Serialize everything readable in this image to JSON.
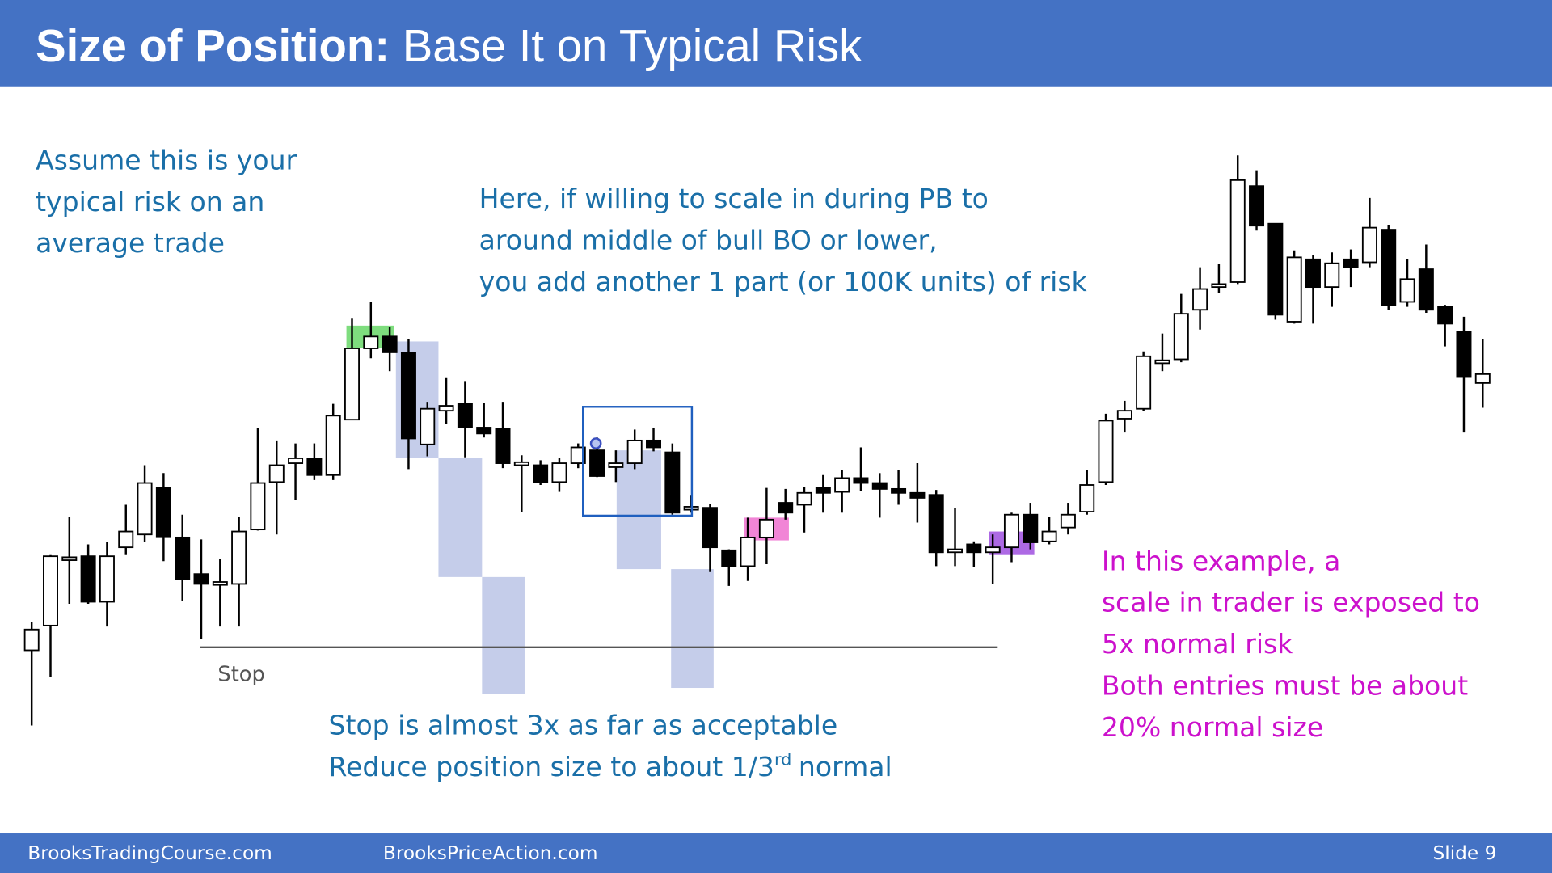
{
  "header": {
    "title_bold": "Size of Position:",
    "title_rest": "Base It on Typical Risk"
  },
  "notes": {
    "typical_risk": [
      "Assume this is your",
      "typical risk on an",
      "average trade"
    ],
    "scale_in": [
      "Here, if willing to scale in during PB to",
      "around middle of bull BO or lower,",
      "you add another 1 part (or 100K units) of risk"
    ],
    "stop": [
      "Stop is almost 3x as far as acceptable",
      "Reduce position size to about 1/3",
      "rd",
      "normal"
    ],
    "example": [
      "In this example, a",
      "scale in trader is exposed to",
      "5x normal risk",
      "Both entries must be about",
      "20% normal size"
    ],
    "stop_label": "Stop"
  },
  "footer": {
    "left": "BrooksTradingCourse.com",
    "middle": "BrooksPriceAction.com",
    "slide": "Slide 9"
  },
  "chart_data": {
    "type": "candlestick",
    "up_color": "#ffffff",
    "down_color": "#000000",
    "ylim": [
      0,
      620
    ],
    "open": [
      103,
      128,
      194,
      198,
      152,
      207,
      220,
      267,
      217,
      180,
      169,
      170,
      225,
      273,
      292,
      297,
      280,
      336,
      408,
      420,
      404,
      311,
      345,
      352,
      328,
      327,
      290,
      290,
      273,
      292,
      305,
      288,
      292,
      315,
      303,
      245,
      247,
      204,
      188,
      217,
      252,
      250,
      267,
      263,
      277,
      272,
      266,
      262,
      260,
      202,
      210,
      202,
      207,
      240,
      213,
      227,
      243,
      273,
      337,
      347,
      393,
      397,
      447,
      470,
      475,
      572,
      534,
      435,
      498,
      470,
      498,
      495,
      528,
      455,
      488,
      450,
      425,
      373
    ],
    "high": [
      132,
      200,
      238,
      210,
      212,
      250,
      290,
      282,
      240,
      215,
      195,
      238,
      328,
      315,
      312,
      312,
      352,
      438,
      455,
      430,
      417,
      354,
      378,
      375,
      353,
      354,
      300,
      295,
      297,
      312,
      318,
      305,
      326,
      328,
      312,
      260,
      251,
      205,
      237,
      267,
      266,
      268,
      280,
      285,
      308,
      282,
      285,
      292,
      265,
      247,
      213,
      220,
      242,
      252,
      238,
      252,
      285,
      342,
      355,
      405,
      423,
      463,
      490,
      493,
      603,
      588,
      534,
      507,
      502,
      505,
      508,
      560,
      533,
      498,
      513,
      452,
      440,
      417
    ],
    "low": [
      27,
      76,
      150,
      150,
      127,
      200,
      212,
      193,
      153,
      114,
      127,
      127,
      224,
      220,
      255,
      275,
      275,
      336,
      398,
      385,
      286,
      299,
      332,
      298,
      318,
      287,
      243,
      270,
      263,
      287,
      278,
      273,
      286,
      304,
      240,
      242,
      182,
      168,
      173,
      190,
      235,
      222,
      242,
      242,
      264,
      237,
      250,
      232,
      188,
      188,
      187,
      170,
      192,
      205,
      210,
      220,
      240,
      270,
      323,
      345,
      385,
      394,
      427,
      464,
      473,
      527,
      437,
      433,
      433,
      450,
      470,
      490,
      447,
      450,
      444,
      410,
      323,
      348
    ],
    "close": [
      124,
      198,
      197,
      152,
      198,
      223,
      272,
      218,
      175,
      170,
      172,
      223,
      272,
      290,
      297,
      280,
      340,
      408,
      420,
      404,
      317,
      347,
      350,
      328,
      322,
      292,
      293,
      273,
      292,
      308,
      279,
      292,
      315,
      308,
      242,
      248,
      207,
      188,
      217,
      235,
      242,
      262,
      262,
      277,
      272,
      266,
      262,
      257,
      202,
      205,
      202,
      207,
      240,
      212,
      223,
      240,
      270,
      335,
      345,
      400,
      396,
      443,
      468,
      473,
      578,
      532,
      442,
      500,
      470,
      494,
      490,
      530,
      452,
      478,
      447,
      433,
      379,
      382
    ]
  }
}
